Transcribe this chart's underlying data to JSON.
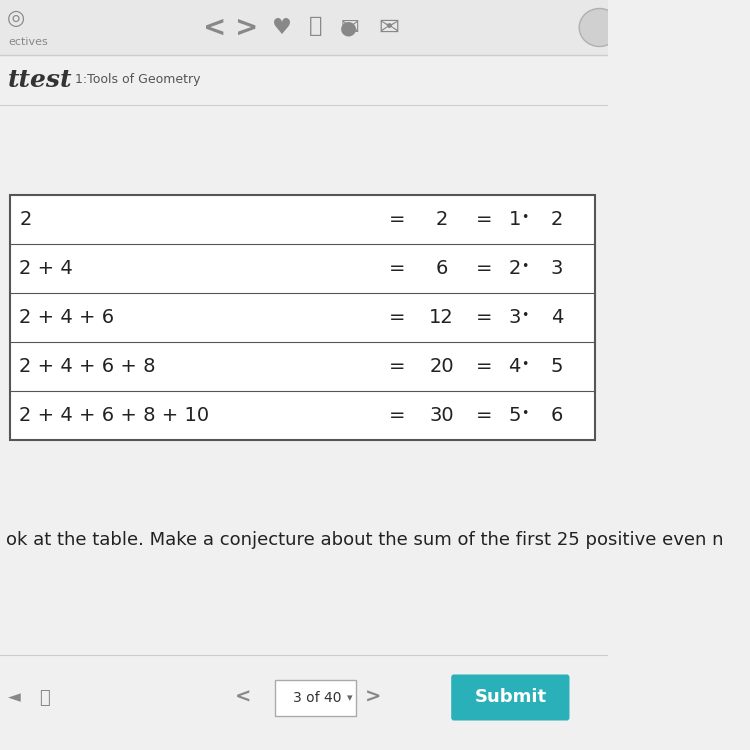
{
  "bg_color": "#f0f0f0",
  "toolbar_icon_color": "#888888",
  "table_rows": [
    {
      "left": "2",
      "mid": "2",
      "right_a": "1",
      "right_b": "2"
    },
    {
      "left": "2 + 4",
      "mid": "6",
      "right_a": "2",
      "right_b": "3"
    },
    {
      "left": "2 + 4 + 6",
      "mid": "12",
      "right_a": "3",
      "right_b": "4"
    },
    {
      "left": "2 + 4 + 6 + 8",
      "mid": "20",
      "right_a": "4",
      "right_b": "5"
    },
    {
      "left": "2 + 4 + 6 + 8 + 10",
      "mid": "30",
      "right_a": "5",
      "right_b": "6"
    }
  ],
  "bottom_text": "ok at the table. Make a conjecture about the sum of the first 25 positive even n",
  "page_text": "3 of 40",
  "submit_color": "#2ab0b8",
  "font_size_table": 14,
  "font_size_bottom": 13
}
